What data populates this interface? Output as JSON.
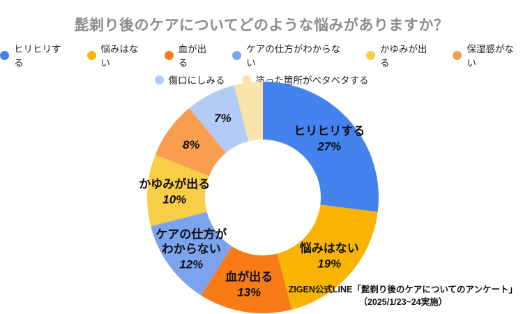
{
  "title": "髭剃り後のケアについてどのような悩みがありますか？",
  "chart_data": {
    "type": "pie",
    "subtype": "donut",
    "title": "髭剃り後のケアについてどのような悩みがありますか？",
    "unit": "%",
    "start_angle_deg": 0,
    "direction": "clockwise",
    "inner_radius_ratio": 0.5,
    "legend_position": "top",
    "segments": [
      {
        "label": "ヒリヒリする",
        "value": 27,
        "color": "#4483ee",
        "label_lines": [
          "ヒリヒリする",
          "27%"
        ]
      },
      {
        "label": "悩みはない",
        "value": 19,
        "color": "#f8b400",
        "label_lines": [
          "悩みはない",
          "19%"
        ]
      },
      {
        "label": "血が出る",
        "value": 13,
        "color": "#f97b16",
        "label_lines": [
          "血が出る",
          "13%"
        ]
      },
      {
        "label": "ケアの仕方がわからない",
        "value": 12,
        "color": "#7ba3ee",
        "label_lines": [
          "ケアの仕方が",
          "わからない",
          "12%"
        ]
      },
      {
        "label": "かゆみが出る",
        "value": 10,
        "color": "#f8ce46",
        "label_lines": [
          "かゆみが出る",
          "10%"
        ]
      },
      {
        "label": "保湿感がない",
        "value": 8,
        "color": "#f99d50",
        "label_lines": [
          "8%"
        ]
      },
      {
        "label": "傷口にしみる",
        "value": 7,
        "color": "#b3ccf7",
        "label_lines": [
          "7%"
        ]
      },
      {
        "label": "塗った箇所がベタベタする",
        "value": 4,
        "color": "#fae3a8",
        "label_lines": []
      }
    ]
  },
  "source": {
    "line1": "ZIGEN公式LINE「髭剃り後のケアについてのアンケート」",
    "line2": "（2025/1/23~24実施）"
  }
}
